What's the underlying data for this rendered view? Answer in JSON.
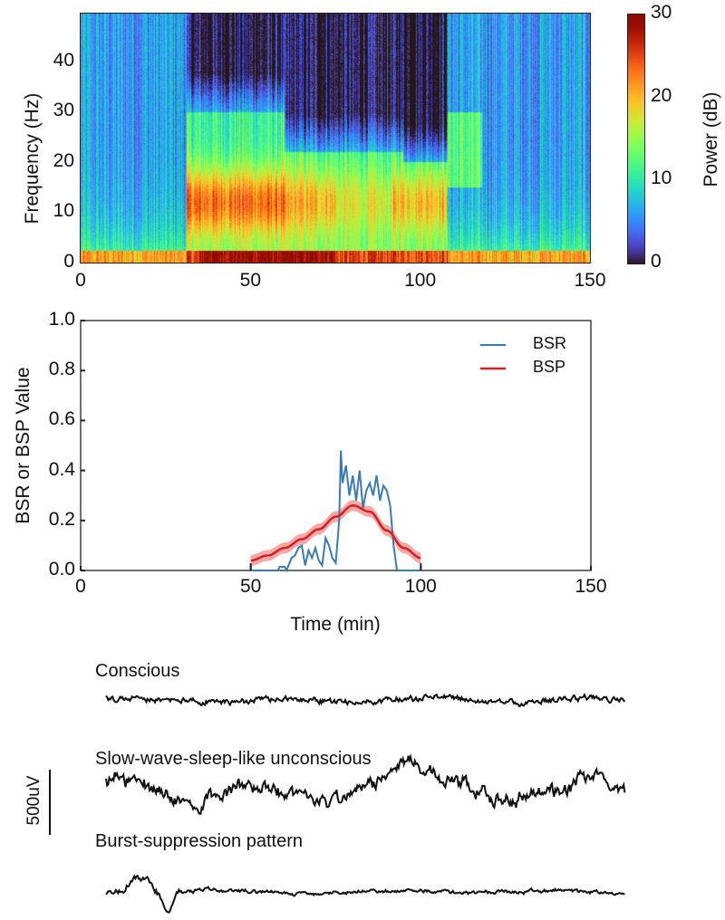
{
  "chart_data": [
    {
      "type": "heatmap",
      "xlabel": "",
      "ylabel": "Frequency (Hz)",
      "xlim": [
        0,
        150
      ],
      "ylim": [
        0,
        49.5
      ],
      "xticks": [
        "0",
        "50",
        "100",
        "150"
      ],
      "yticks": [
        "0",
        "10",
        "20",
        "30",
        "40"
      ],
      "colorbar": {
        "label": "Power (dB)",
        "clim": [
          0,
          30
        ],
        "ticks": [
          "0",
          "10",
          "20",
          "30"
        ],
        "colormap": "turbo"
      }
    },
    {
      "type": "line",
      "xlabel": "Time (min)",
      "ylabel": "BSR or BSP Value",
      "xlim": [
        0,
        150
      ],
      "ylim": [
        0,
        1.0
      ],
      "xticks": [
        "0",
        "50",
        "100",
        "150"
      ],
      "yticks": [
        "0.0",
        "0.2",
        "0.4",
        "0.6",
        "0.8",
        "1.0"
      ],
      "legend_position": "top-right",
      "series": [
        {
          "name": "BSR",
          "color": "#3a7ab8",
          "x": [
            50,
            58,
            58.5,
            60,
            60.5,
            62,
            63,
            64,
            65,
            66,
            67,
            68,
            69,
            70,
            71,
            72,
            73,
            74,
            75,
            76,
            76.5,
            77,
            78,
            79,
            80,
            81,
            82,
            83,
            84,
            85,
            86,
            87,
            88,
            89,
            90,
            91,
            92,
            93,
            100
          ],
          "y": [
            0,
            0,
            0.015,
            0.015,
            0,
            0.05,
            0.06,
            0.09,
            0.1,
            0.02,
            0.08,
            0.05,
            0.09,
            0.04,
            0.02,
            0.13,
            0.1,
            0.05,
            0.03,
            0.2,
            0.48,
            0.35,
            0.42,
            0.3,
            0.38,
            0.28,
            0.4,
            0.25,
            0.32,
            0.35,
            0.3,
            0.38,
            0.28,
            0.34,
            0.32,
            0.26,
            0.1,
            0,
            0
          ]
        },
        {
          "name": "BSP",
          "color": "#d42020",
          "band_color": "#f29a9a",
          "x": [
            50,
            55,
            60,
            65,
            70,
            75,
            80,
            85,
            90,
            95,
            100
          ],
          "y": [
            0.04,
            0.06,
            0.09,
            0.125,
            0.165,
            0.215,
            0.26,
            0.235,
            0.16,
            0.09,
            0.05
          ],
          "band_halfwidth": 0.022
        }
      ]
    }
  ],
  "eeg": {
    "scale_label": "500uV",
    "traces": [
      {
        "label": "Conscious"
      },
      {
        "label": "Slow-wave-sleep-like unconscious"
      },
      {
        "label": "Burst-suppression pattern"
      }
    ]
  }
}
